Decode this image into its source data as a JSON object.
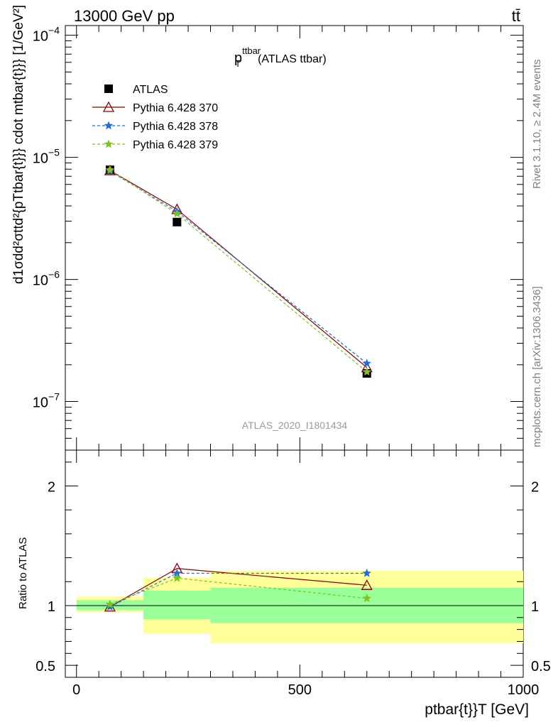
{
  "header": {
    "left_label": "13000 GeV pp",
    "right_label": "tt̄"
  },
  "plot_title": {
    "main": "p",
    "superscript": "ttbar",
    "subscript": "T",
    "suffix": "(ATLAS ttbar)"
  },
  "watermark": "ATLAS_2020_I1801434",
  "side_labels": {
    "rivet": "Rivet 3.1.10, ≥ 2.4M events",
    "source": "mcplots.cern.ch [arXiv:1306.3436]"
  },
  "y_axis_label": "d1σdd²σttd²{pTtbar{t}}} cdot mtbar{t}}} [1/GeV²]",
  "ratio_axis_label": "Ratio to ATLAS",
  "x_axis_label": "ptbar{t}}T [GeV]",
  "chart_data": [
    {
      "type": "line",
      "panel": "main",
      "y_scale": "log",
      "xlim": [
        -25,
        1000
      ],
      "ylim": [
        4e-08,
        0.00012
      ],
      "y_ticks": [
        {
          "value": 1e-07,
          "label": "10",
          "exp": "−7"
        },
        {
          "value": 1e-06,
          "label": "10",
          "exp": "−6"
        },
        {
          "value": 1e-05,
          "label": "10",
          "exp": "−5"
        },
        {
          "value": 0.0001,
          "label": "10",
          "exp": "−4"
        }
      ],
      "legend_position": "top-left",
      "series": [
        {
          "name": "ATLAS",
          "marker": "square",
          "color": "#000000",
          "x": [
            75,
            225,
            650
          ],
          "y": [
            7.9e-06,
            2.95e-06,
            1.7e-07
          ]
        },
        {
          "name": "Pythia 6.428 370",
          "marker": "triangle",
          "color": "#8b0000",
          "dash": "",
          "x": [
            75,
            225,
            650
          ],
          "y": [
            7.8e-06,
            3.75e-06,
            1.9e-07
          ]
        },
        {
          "name": "Pythia 6.428 378",
          "marker": "star",
          "color": "#1e6fd9",
          "dash": "4,3",
          "x": [
            75,
            225,
            650
          ],
          "y": [
            7.7e-06,
            3.6e-06,
            2.05e-07
          ]
        },
        {
          "name": "Pythia 6.428 379",
          "marker": "star",
          "color": "#7fc31c",
          "dash": "4,3",
          "x": [
            75,
            225,
            650
          ],
          "y": [
            7.9e-06,
            3.45e-06,
            1.75e-07
          ]
        }
      ]
    },
    {
      "type": "line",
      "panel": "ratio",
      "xlim": [
        -25,
        1000
      ],
      "ylim": [
        0.4,
        2.3
      ],
      "x_ticks": [
        0,
        500,
        1000
      ],
      "y_ticks": [
        0.5,
        1,
        2
      ],
      "bands": [
        {
          "x0": 0,
          "x1": 150,
          "yellow": [
            0.945,
            1.075
          ],
          "green": [
            0.965,
            1.045
          ]
        },
        {
          "x0": 150,
          "x1": 300,
          "yellow": [
            0.765,
            1.235
          ],
          "green": [
            0.885,
            1.125
          ]
        },
        {
          "x0": 300,
          "x1": 1000,
          "yellow": [
            0.685,
            1.29
          ],
          "green": [
            0.855,
            1.15
          ]
        }
      ],
      "series": [
        {
          "name": "Pythia 6.428 370",
          "x": [
            75,
            225,
            650
          ],
          "y": [
            0.99,
            1.31,
            1.17
          ]
        },
        {
          "name": "Pythia 6.428 378",
          "x": [
            75,
            225,
            650
          ],
          "y": [
            0.99,
            1.27,
            1.27
          ]
        },
        {
          "name": "Pythia 6.428 379",
          "x": [
            75,
            225,
            650
          ],
          "y": [
            1.01,
            1.23,
            1.06
          ]
        }
      ]
    }
  ]
}
